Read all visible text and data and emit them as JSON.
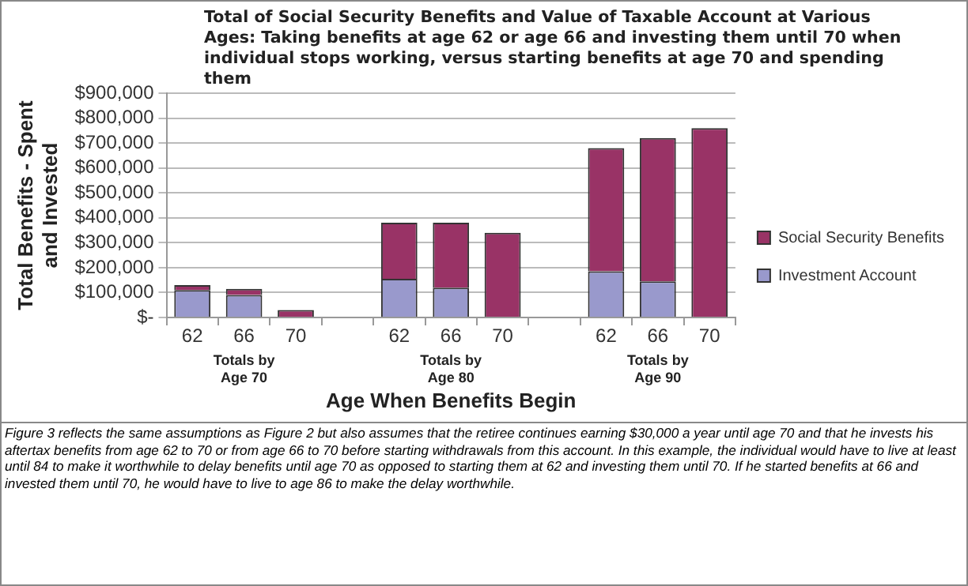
{
  "chart_data": {
    "type": "bar",
    "title": "Total of Social Security Benefits and Value of Taxable Account at Various Ages: Taking benefits at age 62 or age 66 and investing them until 70 when individual stops working, versus starting benefits at age 70 and spending them",
    "categories": [
      "62",
      "66",
      "70",
      null,
      "62",
      "66",
      "70",
      null,
      "62",
      "66",
      "70"
    ],
    "series": [
      {
        "name": "Investment Account",
        "color": "#9999cc",
        "values": [
          110000,
          90000,
          0,
          null,
          155000,
          120000,
          0,
          null,
          185000,
          145000,
          0
        ]
      },
      {
        "name": "Social Security Benefits",
        "color": "#993366",
        "values": [
          20000,
          25000,
          30000,
          null,
          225000,
          260000,
          340000,
          null,
          495000,
          575000,
          760000
        ]
      }
    ],
    "stacked": true,
    "xlabel": "Age When Benefits Begin",
    "ylabel": "Total Benefits - Spent and Invested",
    "ylim": [
      0,
      900000
    ],
    "yticks": [
      {
        "value": 0,
        "label": "$-"
      },
      {
        "value": 100000,
        "label": "$100,000"
      },
      {
        "value": 200000,
        "label": "$200,000"
      },
      {
        "value": 300000,
        "label": "$300,000"
      },
      {
        "value": 400000,
        "label": "$400,000"
      },
      {
        "value": 500000,
        "label": "$500,000"
      },
      {
        "value": 600000,
        "label": "$600,000"
      },
      {
        "value": 700000,
        "label": "$700,000"
      },
      {
        "value": 800000,
        "label": "$800,000"
      },
      {
        "value": 900000,
        "label": "$900,000"
      }
    ],
    "grid": "y",
    "legend": "right",
    "annotations": [
      "Totals by Age 70",
      "Totals by Age 80",
      "Totals by Age 90",
      "Figure 3 reflects the same assumptions as Figure 2 but also assumes that the retiree continues earning $30,000 a year until age 70 and that he invests his aftertax benefits from age 62 to 70 or from age 66 to 70 before starting withdrawals from this account. In this example, the individual would have to live at least until 84 to make it worthwhile to delay benefits until age 70 as opposed to starting them at 62 and investing them until 70. If he started benefits at 66 and invested them until 70, he would have to live to age 86 to make the delay worthwhile."
    ]
  }
}
